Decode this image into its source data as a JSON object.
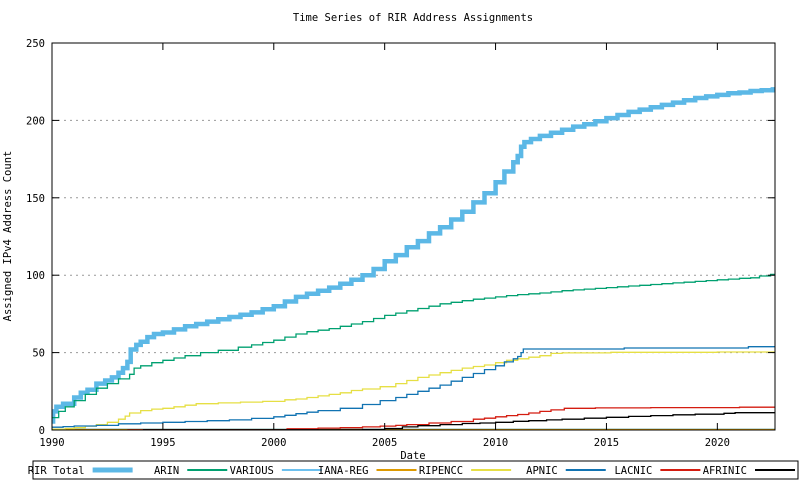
{
  "chart_data": {
    "type": "line",
    "title": "Time Series of RIR Address Assignments",
    "xlabel": "Date",
    "ylabel": "Assigned IPv4 Address Count",
    "xlim": [
      1990,
      2022.6
    ],
    "ylim": [
      0,
      250
    ],
    "xticks": [
      1990,
      1995,
      2000,
      2005,
      2010,
      2015,
      2020
    ],
    "yticks": [
      0,
      50,
      100,
      150,
      200,
      250
    ],
    "grid": "horizontal-dotted",
    "grid_color": "#999999",
    "axis_color": "#000000",
    "background_color": "#ffffff",
    "legend_position": "bottom-row-boxed",
    "series": [
      {
        "name": "RIR Total",
        "color": "#5cb8e6",
        "width": 4.5,
        "points": [
          [
            1990.0,
            5.5
          ],
          [
            1990.05,
            12
          ],
          [
            1990.2,
            15
          ],
          [
            1990.5,
            17
          ],
          [
            1991.0,
            21
          ],
          [
            1991.3,
            24
          ],
          [
            1991.6,
            26
          ],
          [
            1992.0,
            30
          ],
          [
            1992.4,
            32
          ],
          [
            1992.7,
            34
          ],
          [
            1993.0,
            37
          ],
          [
            1993.2,
            40
          ],
          [
            1993.4,
            44
          ],
          [
            1993.55,
            52
          ],
          [
            1993.8,
            55
          ],
          [
            1994.0,
            57
          ],
          [
            1994.3,
            60
          ],
          [
            1994.6,
            62
          ],
          [
            1995.0,
            63
          ],
          [
            1995.5,
            65
          ],
          [
            1996.0,
            67
          ],
          [
            1996.5,
            68.5
          ],
          [
            1997.0,
            70
          ],
          [
            1997.5,
            71.5
          ],
          [
            1998.0,
            73
          ],
          [
            1998.5,
            74.5
          ],
          [
            1999.0,
            76
          ],
          [
            1999.5,
            78
          ],
          [
            2000.0,
            80
          ],
          [
            2000.5,
            83
          ],
          [
            2001.0,
            86
          ],
          [
            2001.5,
            88
          ],
          [
            2002.0,
            90
          ],
          [
            2002.5,
            92
          ],
          [
            2003.0,
            94.5
          ],
          [
            2003.5,
            97
          ],
          [
            2004.0,
            100
          ],
          [
            2004.5,
            104
          ],
          [
            2005.0,
            109
          ],
          [
            2005.5,
            113
          ],
          [
            2006.0,
            118
          ],
          [
            2006.5,
            122
          ],
          [
            2007.0,
            127
          ],
          [
            2007.5,
            131
          ],
          [
            2008.0,
            136
          ],
          [
            2008.5,
            141
          ],
          [
            2009.0,
            147
          ],
          [
            2009.5,
            153
          ],
          [
            2010.0,
            160
          ],
          [
            2010.4,
            167
          ],
          [
            2010.8,
            173
          ],
          [
            2011.0,
            177
          ],
          [
            2011.15,
            183
          ],
          [
            2011.3,
            186
          ],
          [
            2011.6,
            188
          ],
          [
            2012.0,
            190
          ],
          [
            2012.5,
            192
          ],
          [
            2013.0,
            194
          ],
          [
            2013.5,
            196
          ],
          [
            2014.0,
            197.5
          ],
          [
            2014.5,
            199.5
          ],
          [
            2015.0,
            201.5
          ],
          [
            2015.5,
            203.5
          ],
          [
            2016.0,
            205.5
          ],
          [
            2016.5,
            207
          ],
          [
            2017.0,
            208.5
          ],
          [
            2017.5,
            210
          ],
          [
            2018.0,
            211.5
          ],
          [
            2018.5,
            213
          ],
          [
            2019.0,
            214.5
          ],
          [
            2019.5,
            215.5
          ],
          [
            2020.0,
            216.5
          ],
          [
            2020.5,
            217.5
          ],
          [
            2021.0,
            218
          ],
          [
            2021.5,
            219
          ],
          [
            2022.0,
            219.5
          ],
          [
            2022.5,
            220
          ]
        ]
      },
      {
        "name": "ARIN",
        "color": "#00a070",
        "width": 1.3,
        "points": [
          [
            1990.0,
            8
          ],
          [
            1990.3,
            12
          ],
          [
            1990.6,
            15
          ],
          [
            1991.0,
            19
          ],
          [
            1991.5,
            23
          ],
          [
            1992.0,
            27
          ],
          [
            1992.5,
            30
          ],
          [
            1993.0,
            33
          ],
          [
            1993.5,
            36
          ],
          [
            1993.7,
            40
          ],
          [
            1994.0,
            41.5
          ],
          [
            1994.5,
            43.5
          ],
          [
            1995.0,
            45
          ],
          [
            1995.5,
            46.5
          ],
          [
            1996.0,
            48
          ],
          [
            1996.7,
            50
          ],
          [
            1997.5,
            51.5
          ],
          [
            1998.4,
            53.5
          ],
          [
            1999.0,
            55
          ],
          [
            1999.5,
            56.5
          ],
          [
            2000.0,
            58
          ],
          [
            2000.5,
            60
          ],
          [
            2001.0,
            62
          ],
          [
            2001.5,
            63.5
          ],
          [
            2002.0,
            64.5
          ],
          [
            2002.5,
            65.5
          ],
          [
            2003.0,
            67
          ],
          [
            2003.5,
            68.5
          ],
          [
            2004.0,
            70
          ],
          [
            2004.5,
            72
          ],
          [
            2005.0,
            74
          ],
          [
            2005.5,
            75.5
          ],
          [
            2006.0,
            77
          ],
          [
            2006.5,
            78.5
          ],
          [
            2007.0,
            80
          ],
          [
            2007.5,
            81.5
          ],
          [
            2008.0,
            82.5
          ],
          [
            2008.5,
            83.5
          ],
          [
            2009.0,
            84.5
          ],
          [
            2009.5,
            85.2
          ],
          [
            2010.0,
            86
          ],
          [
            2010.5,
            86.8
          ],
          [
            2011.0,
            87.5
          ],
          [
            2011.5,
            88
          ],
          [
            2012.0,
            88.5
          ],
          [
            2012.5,
            89.2
          ],
          [
            2013.0,
            90
          ],
          [
            2013.5,
            90.5
          ],
          [
            2014.0,
            91
          ],
          [
            2014.5,
            91.5
          ],
          [
            2015.0,
            92
          ],
          [
            2015.5,
            92.5
          ],
          [
            2016.0,
            93
          ],
          [
            2016.5,
            93.5
          ],
          [
            2017.0,
            94
          ],
          [
            2017.5,
            94.5
          ],
          [
            2018.0,
            95
          ],
          [
            2018.5,
            95.5
          ],
          [
            2019.0,
            96
          ],
          [
            2019.5,
            96.5
          ],
          [
            2020.0,
            97
          ],
          [
            2020.5,
            97.5
          ],
          [
            2021.0,
            98
          ],
          [
            2021.5,
            98.3
          ],
          [
            2021.9,
            99.5
          ],
          [
            2022.4,
            100.5
          ]
        ]
      },
      {
        "name": "VARIOUS",
        "color": "#6cc0ee",
        "width": 1.3,
        "points": [
          [
            1990.0,
            0.5
          ],
          [
            2022.6,
            0.5
          ]
        ]
      },
      {
        "name": "IANA-REG",
        "color": "#dd9a00",
        "width": 1.3,
        "points": [
          [
            1990.0,
            0.3
          ],
          [
            2022.6,
            0.3
          ]
        ]
      },
      {
        "name": "RIPENCC",
        "color": "#e6df44",
        "width": 1.3,
        "points": [
          [
            1990.0,
            0.5
          ],
          [
            1990.6,
            1
          ],
          [
            1991.0,
            1.5
          ],
          [
            1991.5,
            2.5
          ],
          [
            1992.0,
            3.5
          ],
          [
            1992.5,
            5
          ],
          [
            1993.0,
            7
          ],
          [
            1993.3,
            9
          ],
          [
            1993.5,
            11
          ],
          [
            1994.0,
            12.5
          ],
          [
            1994.5,
            13.5
          ],
          [
            1995.0,
            14
          ],
          [
            1995.5,
            15
          ],
          [
            1996.0,
            16
          ],
          [
            1996.5,
            17
          ],
          [
            1997.5,
            17.5
          ],
          [
            1998.5,
            18
          ],
          [
            1999.5,
            18.5
          ],
          [
            2000.5,
            19.5
          ],
          [
            2001.0,
            20
          ],
          [
            2001.5,
            21
          ],
          [
            2002.0,
            22
          ],
          [
            2002.5,
            23
          ],
          [
            2003.0,
            24
          ],
          [
            2003.5,
            25.5
          ],
          [
            2004.0,
            26.5
          ],
          [
            2004.8,
            28
          ],
          [
            2005.5,
            30
          ],
          [
            2006.0,
            32
          ],
          [
            2006.5,
            34
          ],
          [
            2007.0,
            35.5
          ],
          [
            2007.5,
            37
          ],
          [
            2008.0,
            38.5
          ],
          [
            2008.5,
            40
          ],
          [
            2009.0,
            41
          ],
          [
            2009.5,
            42
          ],
          [
            2010.0,
            43.5
          ],
          [
            2010.5,
            45
          ],
          [
            2011.0,
            46
          ],
          [
            2011.5,
            47
          ],
          [
            2012.0,
            48
          ],
          [
            2012.5,
            49.5
          ],
          [
            2013.0,
            49.8
          ],
          [
            2015.2,
            50.2
          ],
          [
            2020.0,
            50.4
          ]
        ]
      },
      {
        "name": "APNIC",
        "color": "#1173b2",
        "width": 1.3,
        "points": [
          [
            1990.0,
            1.8
          ],
          [
            1990.5,
            2.2
          ],
          [
            1991.0,
            2.6
          ],
          [
            1992.0,
            3
          ],
          [
            1993.0,
            4
          ],
          [
            1994.0,
            4.5
          ],
          [
            1995.0,
            5
          ],
          [
            1996.0,
            5.5
          ],
          [
            1997.0,
            6
          ],
          [
            1998.0,
            6.5
          ],
          [
            1999.0,
            7.5
          ],
          [
            2000.0,
            8.5
          ],
          [
            2000.5,
            9.5
          ],
          [
            2001.0,
            10.5
          ],
          [
            2001.5,
            11.5
          ],
          [
            2002.0,
            12.5
          ],
          [
            2003.0,
            14
          ],
          [
            2004.0,
            16.5
          ],
          [
            2004.8,
            19
          ],
          [
            2005.5,
            21
          ],
          [
            2006.0,
            23
          ],
          [
            2006.5,
            25
          ],
          [
            2007.0,
            27
          ],
          [
            2007.5,
            29
          ],
          [
            2008.0,
            31.5
          ],
          [
            2008.5,
            34
          ],
          [
            2009.0,
            36.5
          ],
          [
            2009.5,
            39
          ],
          [
            2010.0,
            41.5
          ],
          [
            2010.4,
            44
          ],
          [
            2010.8,
            46
          ],
          [
            2011.0,
            47.5
          ],
          [
            2011.15,
            50
          ],
          [
            2011.25,
            52.3
          ],
          [
            2015.8,
            53
          ],
          [
            2021.4,
            53.8
          ]
        ]
      },
      {
        "name": "LACNIC",
        "color": "#d41c10",
        "width": 1.3,
        "points": [
          [
            1993.4,
            0.15
          ],
          [
            2000.6,
            0.8
          ],
          [
            2002.0,
            1.2
          ],
          [
            2003.0,
            1.5
          ],
          [
            2004.0,
            2
          ],
          [
            2004.8,
            2.5
          ],
          [
            2005.5,
            3
          ],
          [
            2006.0,
            3.5
          ],
          [
            2007.0,
            4.5
          ],
          [
            2008.0,
            5.5
          ],
          [
            2009.0,
            7
          ],
          [
            2009.5,
            7.6
          ],
          [
            2010.0,
            8.5
          ],
          [
            2010.5,
            9.3
          ],
          [
            2011.0,
            10
          ],
          [
            2011.5,
            11
          ],
          [
            2012.0,
            12
          ],
          [
            2012.5,
            13
          ],
          [
            2013.1,
            14
          ],
          [
            2014.5,
            14.3
          ],
          [
            2017.0,
            14.5
          ],
          [
            2021.0,
            14.7
          ]
        ]
      },
      {
        "name": "AFRINIC",
        "color": "#000000",
        "width": 1.3,
        "points": [
          [
            1994.1,
            0.1
          ],
          [
            2004.0,
            0.3
          ],
          [
            2005.0,
            1
          ],
          [
            2005.8,
            2
          ],
          [
            2006.5,
            2.8
          ],
          [
            2007.5,
            3.5
          ],
          [
            2008.5,
            4.2
          ],
          [
            2009.3,
            4.5
          ],
          [
            2010.0,
            5
          ],
          [
            2010.8,
            5.6
          ],
          [
            2011.5,
            6
          ],
          [
            2012.3,
            6.5
          ],
          [
            2013.0,
            7
          ],
          [
            2014.0,
            7.6
          ],
          [
            2015.0,
            8.2
          ],
          [
            2016.0,
            8.8
          ],
          [
            2017.0,
            9.3
          ],
          [
            2018.0,
            9.8
          ],
          [
            2019.0,
            10.2
          ],
          [
            2020.3,
            10.8
          ],
          [
            2020.8,
            11.2
          ]
        ]
      }
    ]
  }
}
